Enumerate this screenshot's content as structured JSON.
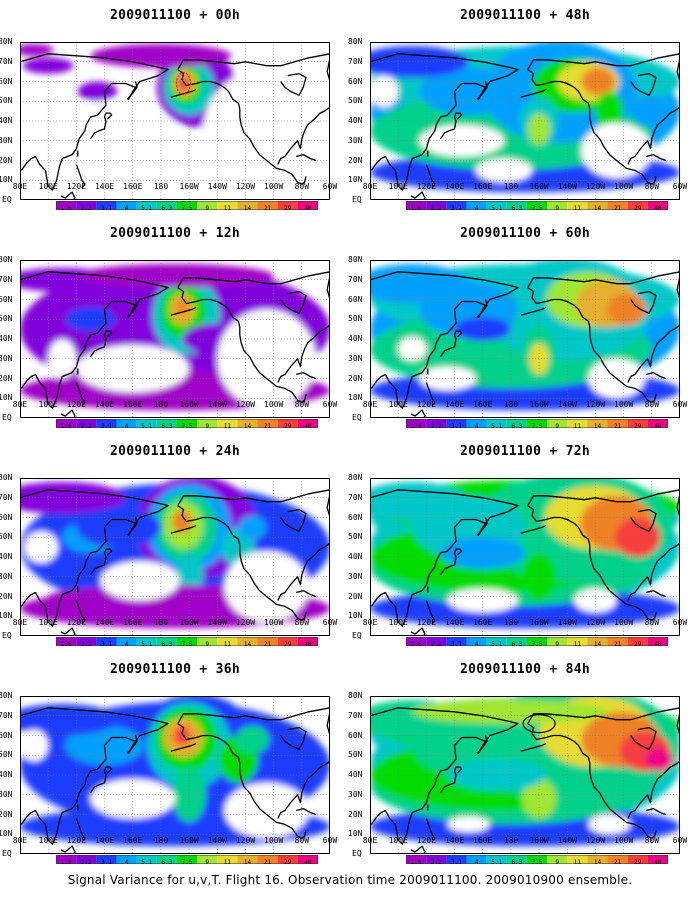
{
  "panels": [
    {
      "title": "2009011100 + 00h",
      "lead_hours": 0
    },
    {
      "title": "2009011100 + 48h",
      "lead_hours": 48
    },
    {
      "title": "2009011100 + 12h",
      "lead_hours": 12
    },
    {
      "title": "2009011100 + 60h",
      "lead_hours": 60
    },
    {
      "title": "2009011100 + 24h",
      "lead_hours": 24
    },
    {
      "title": "2009011100 + 72h",
      "lead_hours": 72
    },
    {
      "title": "2009011100 + 36h",
      "lead_hours": 36
    },
    {
      "title": "2009011100 + 84h",
      "lead_hours": 84
    }
  ],
  "lat_labels": [
    "80N",
    "70N",
    "60N",
    "50N",
    "40N",
    "30N",
    "20N",
    "10N",
    "EQ"
  ],
  "lon_labels": [
    "80E",
    "100E",
    "120E",
    "140E",
    "160E",
    "180",
    "160W",
    "140W",
    "120W",
    "100W",
    "80W",
    "60W"
  ],
  "colorbar": {
    "levels": [
      "1.6",
      "2.2",
      "3.1",
      "4",
      "5.1",
      "6.3",
      "7.5",
      "9",
      "11",
      "14",
      "21",
      "29",
      "40"
    ],
    "colors": [
      "#a000c8",
      "#8200dc",
      "#1e3cff",
      "#00a0ff",
      "#00c8c8",
      "#00d28c",
      "#00dc00",
      "#a0e632",
      "#e6dc32",
      "#e6af2d",
      "#f08228",
      "#fa3c3c",
      "#f00082"
    ]
  },
  "footer": "Signal Variance for u,v,T. Flight 16. Observation time 2009011100. 2009010900 ensemble."
}
